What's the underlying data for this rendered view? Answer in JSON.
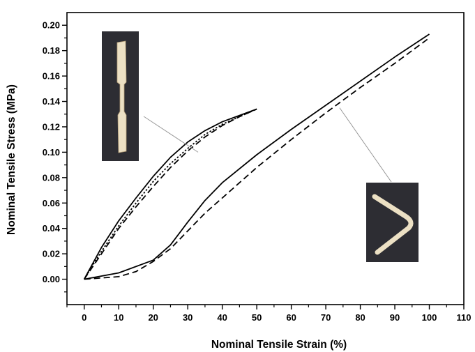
{
  "chart_data": {
    "type": "line",
    "xlabel": "Nominal Tensile Strain (%)",
    "ylabel": "Nominal Tensile Stress (MPa)",
    "xlim": [
      -5,
      110
    ],
    "ylim": [
      -0.02,
      0.21
    ],
    "xticks": [
      0,
      10,
      20,
      30,
      40,
      50,
      60,
      70,
      80,
      90,
      100,
      110
    ],
    "yticks": [
      0.0,
      0.02,
      0.04,
      0.06,
      0.08,
      0.1,
      0.12,
      0.14,
      0.16,
      0.18,
      0.2
    ],
    "ytick_labels": [
      "0.00",
      "0.02",
      "0.04",
      "0.06",
      "0.08",
      "0.10",
      "0.12",
      "0.14",
      "0.16",
      "0.18",
      "0.20"
    ],
    "grid": false,
    "series": [
      {
        "style": "solid",
        "x": [
          0,
          5,
          10,
          15,
          20,
          25,
          30,
          35,
          40,
          45,
          50
        ],
        "y": [
          0,
          0.025,
          0.046,
          0.064,
          0.081,
          0.096,
          0.108,
          0.117,
          0.124,
          0.129,
          0.134
        ]
      },
      {
        "style": "dotted",
        "x": [
          0,
          5,
          10,
          15,
          20,
          25,
          30,
          35,
          40,
          45,
          50
        ],
        "y": [
          0,
          0.022,
          0.042,
          0.06,
          0.077,
          0.091,
          0.103,
          0.114,
          0.122,
          0.128,
          0.134
        ]
      },
      {
        "style": "dashed",
        "x": [
          0,
          5,
          10,
          15,
          20,
          25,
          30,
          35,
          40,
          45,
          50
        ],
        "y": [
          0,
          0.02,
          0.04,
          0.057,
          0.073,
          0.088,
          0.101,
          0.112,
          0.121,
          0.128,
          0.134
        ]
      },
      {
        "style": "solid",
        "x": [
          0,
          10,
          20,
          25,
          30,
          35,
          40,
          50,
          60,
          70,
          80,
          90,
          100
        ],
        "y": [
          0,
          0.005,
          0.015,
          0.027,
          0.045,
          0.062,
          0.076,
          0.098,
          0.118,
          0.137,
          0.156,
          0.175,
          0.193
        ]
      },
      {
        "style": "dashed",
        "x": [
          0,
          10,
          15,
          20,
          25,
          30,
          35,
          40,
          45,
          50,
          60,
          70,
          80,
          90,
          100
        ],
        "y": [
          0,
          0.002,
          0.006,
          0.014,
          0.024,
          0.038,
          0.052,
          0.064,
          0.076,
          0.088,
          0.11,
          0.131,
          0.151,
          0.17,
          0.19
        ]
      }
    ],
    "callouts": [
      {
        "target": [
          33,
          0.1
        ],
        "inset": "straight-specimen-photo"
      },
      {
        "target": [
          74,
          0.135
        ],
        "inset": "bent-specimen-photo"
      }
    ]
  },
  "insets": {
    "straight_specimen_photo": "straight specimen",
    "bent_specimen_photo": "bent specimen"
  }
}
